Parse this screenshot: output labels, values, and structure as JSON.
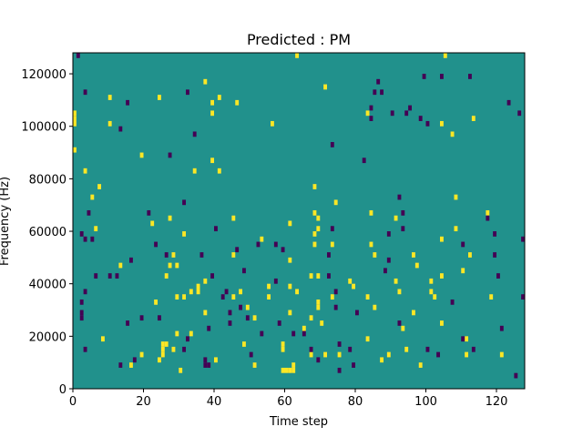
{
  "chart_data": {
    "type": "heatmap",
    "title": "Predicted : PM",
    "xlabel": "Time step",
    "ylabel": "Frequency (Hz)",
    "xlim": [
      0,
      128
    ],
    "ylim": [
      0,
      128000
    ],
    "xticks": [
      0,
      20,
      40,
      60,
      80,
      100,
      120
    ],
    "xtick_labels": [
      "0",
      "20",
      "40",
      "60",
      "80",
      "100",
      "120"
    ],
    "yticks": [
      0,
      20000,
      40000,
      60000,
      80000,
      100000,
      120000
    ],
    "ytick_labels": [
      "0",
      "20000",
      "40000",
      "60000",
      "80000",
      "100000",
      "120000"
    ],
    "grid": false,
    "colormap": "viridis",
    "background_color": "#21918c",
    "high_color": "#fde725",
    "low_color": "#440154",
    "cell_size": {
      "time_steps": 1,
      "frequency_hz": 2000
    },
    "high_cells": [
      [
        1,
        100000
      ],
      [
        1,
        102000
      ],
      [
        1,
        104000
      ],
      [
        1,
        90000
      ],
      [
        4,
        82000
      ],
      [
        6,
        72000
      ],
      [
        7,
        60000
      ],
      [
        8,
        76000
      ],
      [
        9,
        18000
      ],
      [
        11,
        110000
      ],
      [
        11,
        100000
      ],
      [
        14,
        46000
      ],
      [
        17,
        8000
      ],
      [
        20,
        88000
      ],
      [
        20,
        12000
      ],
      [
        23,
        62000
      ],
      [
        24,
        32000
      ],
      [
        25,
        110000
      ],
      [
        25,
        10000
      ],
      [
        26,
        14000
      ],
      [
        26,
        16000
      ],
      [
        26,
        12000
      ],
      [
        27,
        42000
      ],
      [
        27,
        16000
      ],
      [
        28,
        46000
      ],
      [
        28,
        64000
      ],
      [
        29,
        14000
      ],
      [
        29,
        50000
      ],
      [
        30,
        46000
      ],
      [
        30,
        34000
      ],
      [
        30,
        20000
      ],
      [
        31,
        6000
      ],
      [
        32,
        34000
      ],
      [
        32,
        58000
      ],
      [
        34,
        36000
      ],
      [
        34,
        20000
      ],
      [
        35,
        82000
      ],
      [
        36,
        36000
      ],
      [
        36,
        38000
      ],
      [
        38,
        116000
      ],
      [
        38,
        28000
      ],
      [
        38,
        40000
      ],
      [
        40,
        104000
      ],
      [
        40,
        108000
      ],
      [
        40,
        86000
      ],
      [
        41,
        10000
      ],
      [
        42,
        82000
      ],
      [
        42,
        110000
      ],
      [
        46,
        34000
      ],
      [
        46,
        50000
      ],
      [
        46,
        64000
      ],
      [
        47,
        108000
      ],
      [
        48,
        36000
      ],
      [
        49,
        16000
      ],
      [
        50,
        30000
      ],
      [
        52,
        8000
      ],
      [
        52,
        26000
      ],
      [
        54,
        56000
      ],
      [
        56,
        38000
      ],
      [
        56,
        34000
      ],
      [
        57,
        100000
      ],
      [
        60,
        16000
      ],
      [
        60,
        14000
      ],
      [
        60,
        6000
      ],
      [
        61,
        6000
      ],
      [
        62,
        6000
      ],
      [
        63,
        6000
      ],
      [
        64,
        36000
      ],
      [
        62,
        28000
      ],
      [
        62,
        38000
      ],
      [
        62,
        48000
      ],
      [
        62,
        62000
      ],
      [
        63,
        8000
      ],
      [
        64,
        126000
      ],
      [
        66,
        22000
      ],
      [
        68,
        26000
      ],
      [
        68,
        12000
      ],
      [
        68,
        42000
      ],
      [
        69,
        54000
      ],
      [
        69,
        58000
      ],
      [
        69,
        76000
      ],
      [
        69,
        66000
      ],
      [
        70,
        30000
      ],
      [
        70,
        60000
      ],
      [
        70,
        64000
      ],
      [
        70,
        42000
      ],
      [
        70,
        32000
      ],
      [
        71,
        24000
      ],
      [
        72,
        114000
      ],
      [
        72,
        12000
      ],
      [
        74,
        34000
      ],
      [
        74,
        54000
      ],
      [
        75,
        70000
      ],
      [
        76,
        12000
      ],
      [
        79,
        40000
      ],
      [
        80,
        38000
      ],
      [
        84,
        34000
      ],
      [
        84,
        18000
      ],
      [
        84,
        104000
      ],
      [
        85,
        66000
      ],
      [
        85,
        54000
      ],
      [
        86,
        50000
      ],
      [
        86,
        30000
      ],
      [
        88,
        10000
      ],
      [
        90,
        12000
      ],
      [
        92,
        40000
      ],
      [
        92,
        64000
      ],
      [
        93,
        36000
      ],
      [
        94,
        22000
      ],
      [
        95,
        14000
      ],
      [
        97,
        50000
      ],
      [
        97,
        28000
      ],
      [
        98,
        46000
      ],
      [
        99,
        8000
      ],
      [
        102,
        40000
      ],
      [
        102,
        36000
      ],
      [
        103,
        34000
      ],
      [
        105,
        42000
      ],
      [
        105,
        24000
      ],
      [
        105,
        56000
      ],
      [
        105,
        100000
      ],
      [
        106,
        126000
      ],
      [
        108,
        96000
      ],
      [
        109,
        72000
      ],
      [
        109,
        60000
      ],
      [
        111,
        44000
      ],
      [
        112,
        12000
      ],
      [
        112,
        18000
      ],
      [
        113,
        50000
      ],
      [
        114,
        102000
      ],
      [
        118,
        66000
      ],
      [
        119,
        34000
      ],
      [
        122,
        12000
      ]
    ],
    "low_cells": [
      [
        2,
        126000
      ],
      [
        4,
        112000
      ],
      [
        3,
        58000
      ],
      [
        4,
        56000
      ],
      [
        4,
        36000
      ],
      [
        3,
        32000
      ],
      [
        3,
        28000
      ],
      [
        3,
        26000
      ],
      [
        4,
        14000
      ],
      [
        5,
        66000
      ],
      [
        6,
        56000
      ],
      [
        7,
        42000
      ],
      [
        11,
        42000
      ],
      [
        13,
        42000
      ],
      [
        14,
        98000
      ],
      [
        14,
        8000
      ],
      [
        16,
        108000
      ],
      [
        16,
        24000
      ],
      [
        17,
        48000
      ],
      [
        18,
        10000
      ],
      [
        20,
        26000
      ],
      [
        22,
        66000
      ],
      [
        24,
        54000
      ],
      [
        25,
        26000
      ],
      [
        27,
        50000
      ],
      [
        28,
        88000
      ],
      [
        32,
        70000
      ],
      [
        33,
        112000
      ],
      [
        33,
        18000
      ],
      [
        32,
        14000
      ],
      [
        35,
        96000
      ],
      [
        37,
        50000
      ],
      [
        38,
        10000
      ],
      [
        38,
        8000
      ],
      [
        39,
        22000
      ],
      [
        39,
        8000
      ],
      [
        40,
        42000
      ],
      [
        41,
        60000
      ],
      [
        43,
        34000
      ],
      [
        44,
        36000
      ],
      [
        45,
        24000
      ],
      [
        45,
        28000
      ],
      [
        47,
        52000
      ],
      [
        48,
        30000
      ],
      [
        49,
        44000
      ],
      [
        50,
        26000
      ],
      [
        51,
        12000
      ],
      [
        53,
        54000
      ],
      [
        54,
        20000
      ],
      [
        58,
        40000
      ],
      [
        58,
        54000
      ],
      [
        60,
        52000
      ],
      [
        59,
        24000
      ],
      [
        63,
        20000
      ],
      [
        66,
        20000
      ],
      [
        68,
        14000
      ],
      [
        70,
        10000
      ],
      [
        73,
        50000
      ],
      [
        73,
        42000
      ],
      [
        74,
        60000
      ],
      [
        74,
        92000
      ],
      [
        75,
        36000
      ],
      [
        75,
        30000
      ],
      [
        76,
        6000
      ],
      [
        76,
        16000
      ],
      [
        79,
        14000
      ],
      [
        80,
        8000
      ],
      [
        81,
        28000
      ],
      [
        83,
        86000
      ],
      [
        85,
        106000
      ],
      [
        85,
        102000
      ],
      [
        86,
        112000
      ],
      [
        87,
        116000
      ],
      [
        88,
        112000
      ],
      [
        89,
        44000
      ],
      [
        90,
        58000
      ],
      [
        90,
        48000
      ],
      [
        91,
        104000
      ],
      [
        93,
        72000
      ],
      [
        93,
        24000
      ],
      [
        94,
        66000
      ],
      [
        94,
        60000
      ],
      [
        95,
        104000
      ],
      [
        96,
        106000
      ],
      [
        99,
        102000
      ],
      [
        100,
        118000
      ],
      [
        101,
        100000
      ],
      [
        101,
        14000
      ],
      [
        104,
        12000
      ],
      [
        105,
        118000
      ],
      [
        108,
        32000
      ],
      [
        111,
        54000
      ],
      [
        111,
        18000
      ],
      [
        113,
        118000
      ],
      [
        114,
        14000
      ],
      [
        118,
        64000
      ],
      [
        120,
        58000
      ],
      [
        120,
        50000
      ],
      [
        121,
        42000
      ],
      [
        122,
        22000
      ],
      [
        124,
        108000
      ],
      [
        127,
        104000
      ],
      [
        128,
        56000
      ],
      [
        128,
        34000
      ],
      [
        126,
        4000
      ]
    ]
  }
}
